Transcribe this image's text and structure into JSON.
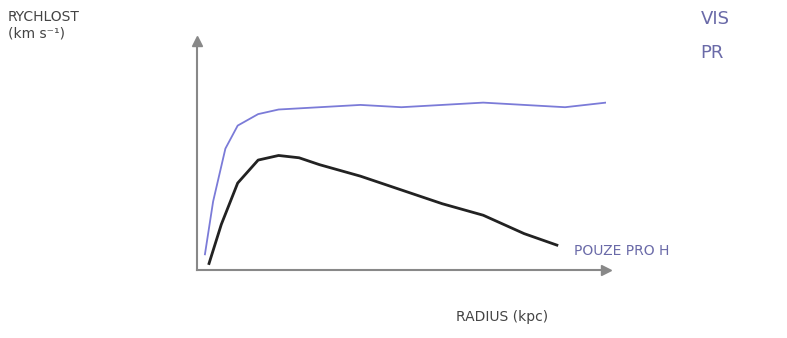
{
  "chart_data": {
    "type": "line",
    "y_label": "RYCHLOST\n(km s⁻¹)",
    "x_label": "RADIUS (kpc)",
    "annotations": [
      "VIS",
      "PR"
    ],
    "xlim": [
      0,
      10
    ],
    "ylim": [
      0,
      10
    ],
    "xticks": [],
    "yticks": [],
    "tick_labels": false,
    "grid": false,
    "series": [
      {
        "color": "#7b7bd8",
        "x": [
          0.2,
          0.4,
          0.7,
          1.0,
          1.5,
          2.0,
          3.0,
          4.0,
          5.0,
          6.0,
          7.0,
          8.0,
          9.0,
          10.0
        ],
        "values": [
          0.7,
          3.0,
          5.3,
          6.3,
          6.8,
          7.0,
          7.1,
          7.2,
          7.1,
          7.2,
          7.3,
          7.2,
          7.1,
          7.3
        ]
      },
      {
        "name": "POUZE PRO H",
        "color": "#222222",
        "x": [
          0.3,
          0.6,
          1.0,
          1.5,
          2.0,
          2.5,
          3.0,
          4.0,
          5.0,
          6.0,
          7.0,
          8.0,
          8.8
        ],
        "values": [
          0.3,
          2.0,
          3.8,
          4.8,
          5.0,
          4.9,
          4.6,
          4.1,
          3.5,
          2.9,
          2.4,
          1.6,
          1.1
        ]
      }
    ]
  }
}
